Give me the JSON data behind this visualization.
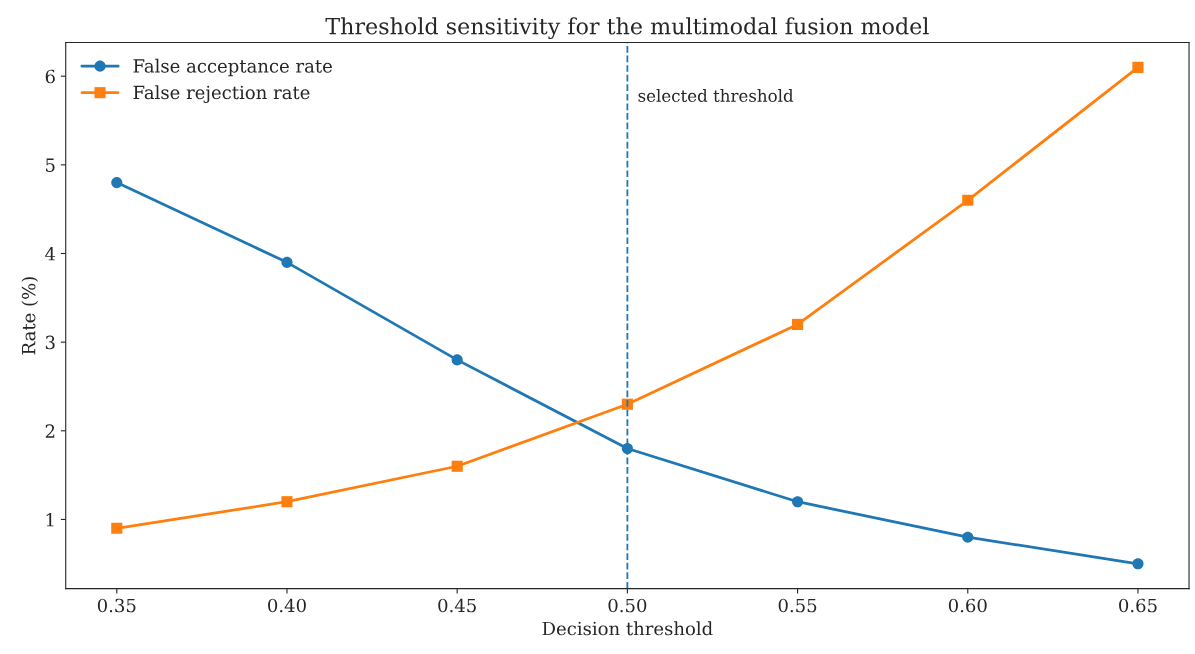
{
  "chart_data": {
    "type": "line",
    "title": "Threshold sensitivity for the multimodal fusion model",
    "xlabel": "Decision threshold",
    "ylabel": "Rate (%)",
    "x": [
      0.35,
      0.4,
      0.45,
      0.5,
      0.55,
      0.6,
      0.65
    ],
    "series": [
      {
        "name": "False acceptance rate",
        "color": "#1f77b4",
        "marker": "circle",
        "values": [
          4.8,
          3.9,
          2.8,
          1.8,
          1.2,
          0.8,
          0.5
        ]
      },
      {
        "name": "False rejection rate",
        "color": "#ff7f0e",
        "marker": "square",
        "values": [
          0.9,
          1.2,
          1.6,
          2.3,
          3.2,
          4.6,
          6.1
        ]
      }
    ],
    "xlim": [
      0.335,
      0.665
    ],
    "ylim": [
      0.22,
      6.38
    ],
    "xticks": [
      {
        "value": 0.35,
        "label": "0.35"
      },
      {
        "value": 0.4,
        "label": "0.40"
      },
      {
        "value": 0.45,
        "label": "0.45"
      },
      {
        "value": 0.5,
        "label": "0.50"
      },
      {
        "value": 0.55,
        "label": "0.55"
      },
      {
        "value": 0.6,
        "label": "0.60"
      },
      {
        "value": 0.65,
        "label": "0.65"
      }
    ],
    "yticks": [
      1,
      2,
      3,
      4,
      5,
      6
    ],
    "ref_lines": [
      {
        "axis": "x",
        "value": 0.5,
        "label": "selected threshold",
        "color": "#1f77b4",
        "line_style": "dashed"
      }
    ],
    "legend": "top left",
    "grid": false,
    "line_style": "solid"
  }
}
